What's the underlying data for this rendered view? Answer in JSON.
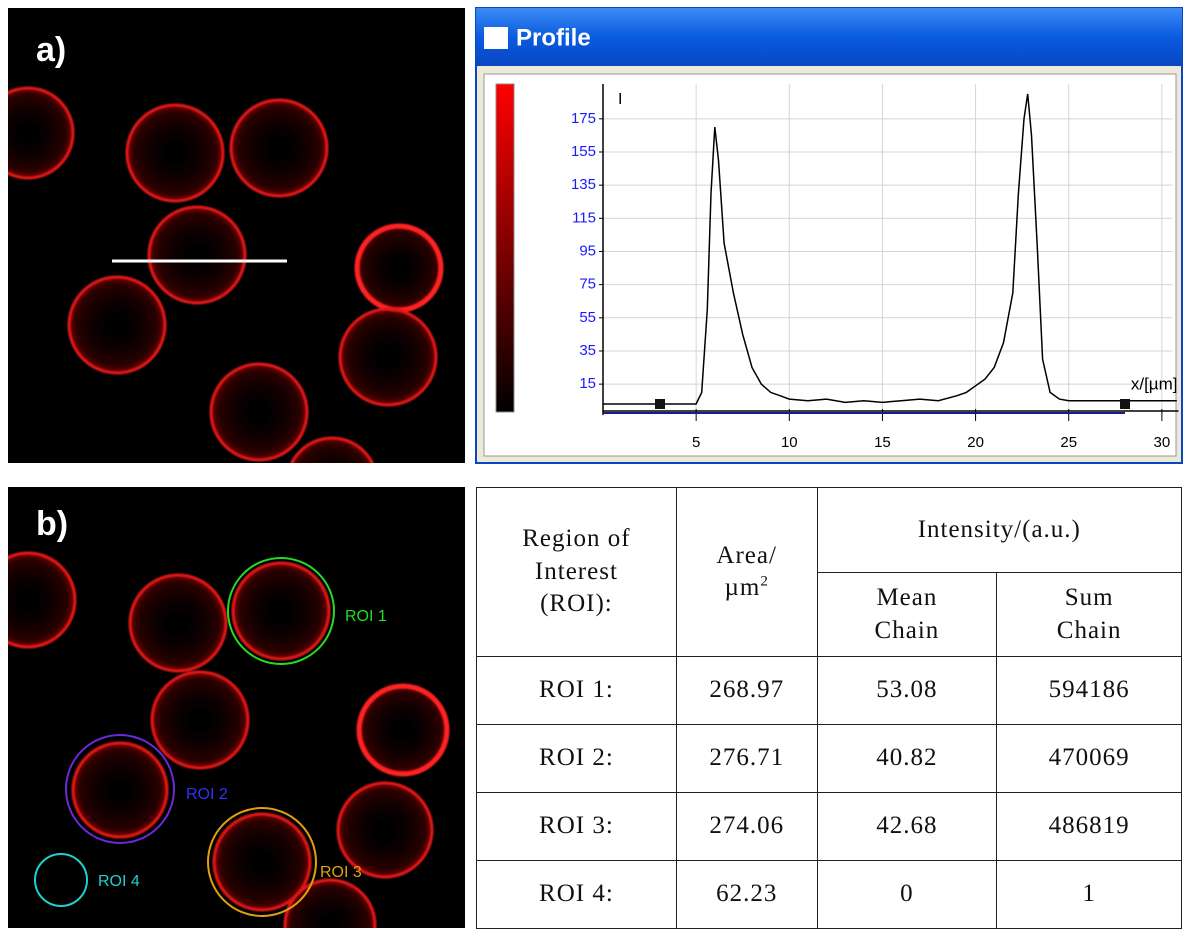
{
  "panels": {
    "a": {
      "label": "a)"
    },
    "b": {
      "label": "b)",
      "roi_labels": [
        "ROI 1",
        "ROI 2",
        "ROI 3",
        "ROI 4"
      ]
    }
  },
  "chart_data": {
    "type": "line",
    "title": "Profile",
    "y_label": "I",
    "x_label": "x/[µm]",
    "x": [
      0,
      3,
      5,
      5.3,
      5.6,
      5.8,
      6,
      6.2,
      6.5,
      7,
      7.5,
      8,
      8.5,
      9,
      9.5,
      10,
      11,
      12,
      13,
      14,
      15,
      16,
      17,
      18,
      19,
      19.5,
      20,
      20.5,
      21,
      21.5,
      22,
      22.3,
      22.6,
      22.8,
      23,
      23.3,
      23.6,
      24,
      24.5,
      25,
      26,
      27,
      28,
      30.8
    ],
    "series": [
      {
        "color": "#000000",
        "values": [
          3,
          3,
          3,
          10,
          60,
          130,
          170,
          150,
          100,
          70,
          45,
          25,
          15,
          10,
          8,
          6,
          5,
          6,
          4,
          5,
          4,
          5,
          6,
          5,
          8,
          10,
          14,
          18,
          25,
          40,
          70,
          130,
          175,
          190,
          165,
          100,
          30,
          10,
          6,
          5,
          5,
          5,
          5,
          5
        ]
      }
    ],
    "xlim": [
      0,
      31
    ],
    "ylim": [
      0,
      196
    ],
    "xticks": [
      5,
      10,
      15,
      20,
      25,
      30
    ],
    "yticks": [
      15,
      35,
      55,
      75,
      95,
      115,
      135,
      155,
      175
    ],
    "grid": true,
    "tick_label_color": "#1a1aff",
    "colorbar": [
      "#ff0000",
      "#000000"
    ]
  },
  "table": {
    "header": {
      "roi": "Region of Interest (ROI):",
      "area": [
        "Area/",
        "µm"
      ],
      "area_sup": "2",
      "intensity": "Intensity/(a.u.)",
      "mean": "Mean Chain",
      "sum": "Sum Chain"
    },
    "rows": [
      [
        "ROI 1:",
        268.97,
        53.08,
        594186
      ],
      [
        "ROI 2:",
        276.71,
        40.82,
        470069
      ],
      [
        "ROI 3:",
        274.06,
        42.68,
        486819
      ],
      [
        "ROI 4:",
        62.23,
        0,
        1
      ]
    ]
  }
}
